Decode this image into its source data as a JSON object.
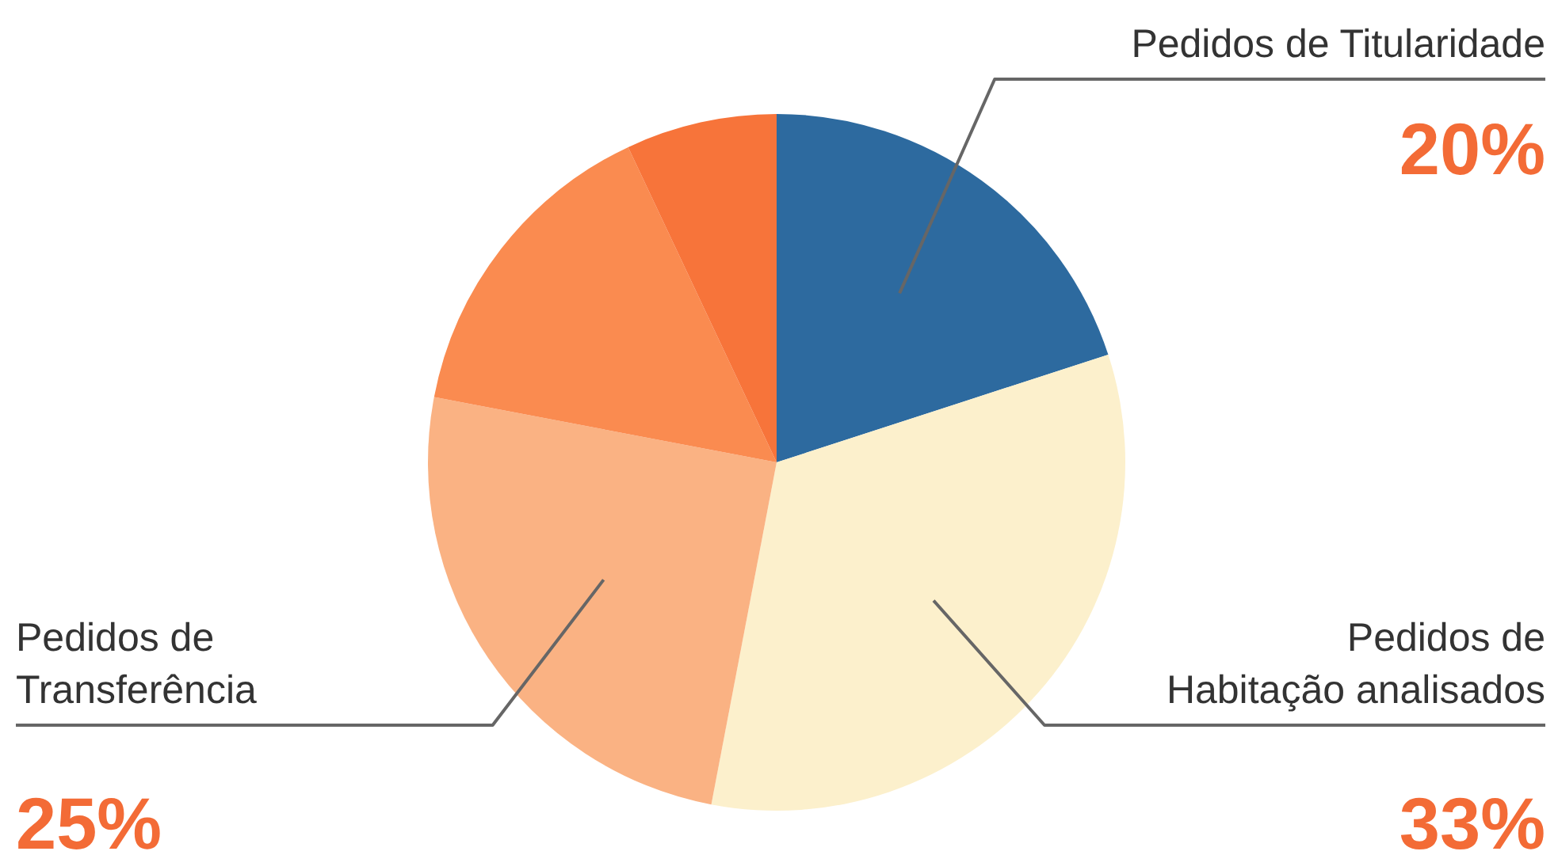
{
  "chart_data": {
    "type": "pie",
    "categories": [
      "Pedidos de Titularidade",
      "Pedidos de Habitação analisados",
      "Pedidos de Transferência",
      null,
      null
    ],
    "values": [
      20,
      33,
      25,
      15,
      7
    ],
    "colors": [
      "#2d6a9f",
      "#fcf0cc",
      "#fab283",
      "#fa8b50",
      "#f7743a"
    ],
    "value_labels": [
      "20%",
      "33%",
      "25%",
      null,
      null
    ],
    "legend": false
  }
}
